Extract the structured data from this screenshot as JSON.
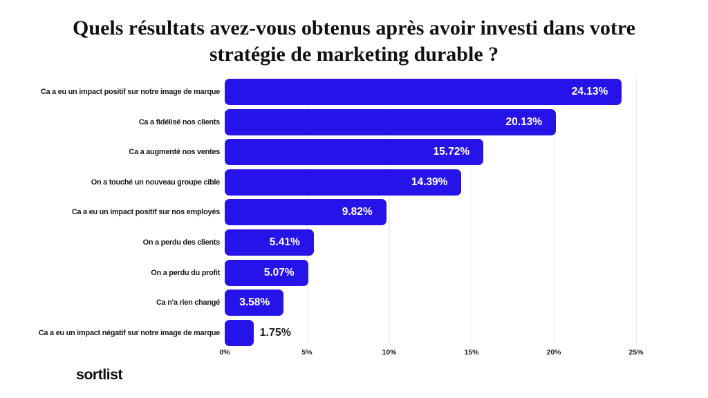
{
  "title": "Quels résultats avez-vous obtenus après avoir investi dans votre stratégie de marketing durable ?",
  "logo": "sortlist",
  "colors": {
    "bar": "#2513e9",
    "title": "#111111",
    "category_label": "#1a1a1a",
    "gridline": "#ececec",
    "value_inside": "#ffffff",
    "value_outside": "#1b1b1b",
    "background": "#ffffff"
  },
  "chart_data": {
    "type": "bar",
    "orientation": "horizontal",
    "title": "Quels résultats avez-vous obtenus après avoir investi dans votre stratégie de marketing durable ?",
    "categories": [
      "Ca a eu un impact positif sur notre image de marque",
      "Ca a fidélisé nos clients",
      "Ca a augmenté nos ventes",
      "On a touché un nouveau groupe cible",
      "Ca a eu un impact positif sur nos employés",
      "On a perdu des clients",
      "On a perdu du profit",
      "Ca n'a rien changé",
      "Ca a eu un impact négatif sur notre image de marque"
    ],
    "values": [
      24.13,
      20.13,
      15.72,
      14.39,
      9.82,
      5.41,
      5.07,
      3.58,
      1.75
    ],
    "value_labels": [
      "24.13%",
      "20.13%",
      "15.72%",
      "14.39%",
      "9.82%",
      "5.41%",
      "5.07%",
      "3.58%",
      "1.75%"
    ],
    "xlabel": "",
    "ylabel": "",
    "xlim": [
      0,
      25
    ],
    "x_ticks": [
      "0%",
      "5%",
      "10%",
      "15%",
      "20%",
      "25%"
    ],
    "x_tick_values": [
      0,
      5,
      10,
      15,
      20,
      25
    ],
    "grid": true,
    "legend": false
  }
}
